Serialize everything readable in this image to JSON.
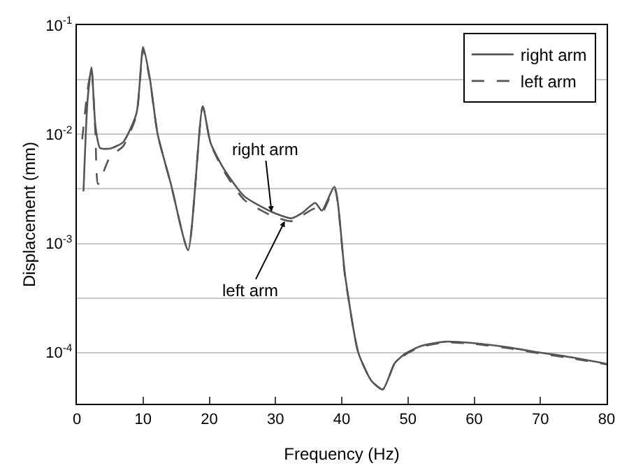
{
  "chart_data": {
    "type": "line",
    "xlabel": "Frequency (Hz)",
    "ylabel": "Displacement (mm)",
    "log": "y",
    "grid": "y",
    "legend": "top right",
    "marker": "none",
    "xlim": [
      0,
      80
    ],
    "xticks": [
      0,
      10,
      20,
      30,
      40,
      50,
      60,
      70,
      80
    ],
    "ylim": [
      3.4e-05,
      0.1
    ],
    "yticks": [
      {
        "value": 0.1,
        "label": "10$^{-1}$"
      },
      {
        "value": 0.0316,
        "label": null
      },
      {
        "value": 0.01,
        "label": "10$^{-2}$"
      },
      {
        "value": 0.00316,
        "label": null
      },
      {
        "value": 0.001,
        "label": "10$^{-3}$"
      },
      {
        "value": 0.000316,
        "label": null
      },
      {
        "value": 0.0001,
        "label": "10$^{-4}$"
      }
    ],
    "series": [
      {
        "name": "right arm",
        "color": "#555555",
        "line_style": "solid",
        "x": [
          1,
          1.6,
          2.2,
          2.8,
          3.5,
          5,
          7,
          9,
          10,
          11,
          12.2,
          14.2,
          16.8,
          19,
          20.2,
          22.3,
          25.3,
          29.4,
          32.4,
          34,
          36,
          37,
          38.9,
          40.5,
          42.5,
          44.5,
          46.2,
          48,
          49.6,
          52,
          55.7,
          60,
          65,
          70,
          75,
          80
        ],
        "values": [
          0.003,
          0.02,
          0.041,
          0.012,
          0.0075,
          0.0074,
          0.0085,
          0.0156,
          0.063,
          0.033,
          0.01,
          0.0035,
          0.00087,
          0.018,
          0.0083,
          0.0047,
          0.0027,
          0.00195,
          0.0017,
          0.0019,
          0.00235,
          0.002,
          0.0033,
          0.00051,
          0.0001,
          5.5e-05,
          4.6e-05,
          8e-05,
          9.8e-05,
          0.000115,
          0.000126,
          0.000122,
          0.000112,
          0.0001,
          9e-05,
          7.9e-05
        ]
      },
      {
        "name": "left arm",
        "color": "#555555",
        "line_style": "dashed",
        "x": [
          0.8,
          1.6,
          2.2,
          2.8,
          3.2,
          5,
          7,
          9,
          10,
          11,
          12.2,
          14.2,
          16.8,
          19,
          20.2,
          22.3,
          25.3,
          29.4,
          32.4,
          34,
          36,
          37,
          38.9,
          40.5,
          42.5,
          44.5,
          46.2,
          48,
          49.6,
          52,
          55.7,
          60,
          65,
          70,
          75,
          80
        ],
        "values": [
          0.009,
          0.025,
          0.04,
          0.01,
          0.0035,
          0.0062,
          0.0078,
          0.015,
          0.06,
          0.032,
          0.01,
          0.0035,
          0.00087,
          0.018,
          0.0082,
          0.0045,
          0.0025,
          0.0018,
          0.0016,
          0.0018,
          0.0021,
          0.0019,
          0.0032,
          0.0005,
          0.0001,
          5.5e-05,
          4.6e-05,
          8e-05,
          9.6e-05,
          0.000113,
          0.000124,
          0.00012,
          0.00011,
          9.8e-05,
          8.8e-05,
          7.8e-05
        ]
      }
    ],
    "annotations": [
      {
        "text": "right arm",
        "x": 29.4,
        "y": 0.00195
      },
      {
        "text": "left arm",
        "x": 31.4,
        "y": 0.0016
      }
    ]
  }
}
